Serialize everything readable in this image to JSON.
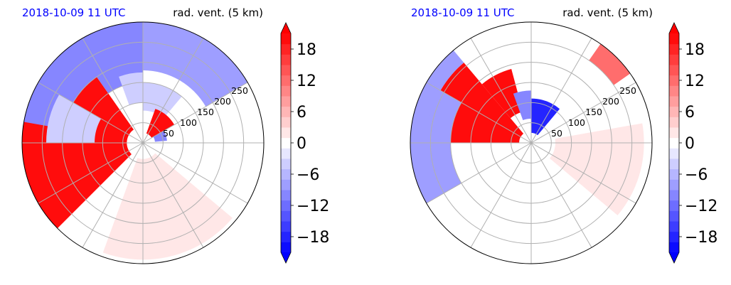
{
  "colors": {
    "title_date": "#0000ff",
    "negative_strong": "#0000ff",
    "positive_strong": "#ff0000",
    "grid": "#b0b0b0"
  },
  "chart_data": [
    {
      "type": "heatmap",
      "projection": "polar",
      "title_left": "2018-10-09 11 UTC",
      "title_right": "rad. vent. (5 km)",
      "range_rings": [
        50,
        100,
        150,
        200,
        250
      ],
      "range_labels": [
        "50",
        "100",
        "150",
        "200",
        "250"
      ],
      "max_range": 300,
      "azimuth_spokes_deg": [
        0,
        30,
        60,
        90,
        120,
        150,
        180,
        210,
        240,
        270,
        300,
        330
      ],
      "colorbar": {
        "vmin": -21,
        "vmax": 21,
        "levels": 21,
        "extend": "both",
        "cmap": "bwr",
        "ticks": [
          -18,
          -12,
          -6,
          0,
          6,
          12,
          18
        ],
        "tick_labels": [
          "−18",
          "−12",
          "−6",
          "0",
          "6",
          "12",
          "18"
        ]
      },
      "regions": [
        {
          "az": [
            225,
            325
          ],
          "r": [
            40,
            300
          ],
          "v": 19
        },
        {
          "az": [
            325,
            360
          ],
          "r": [
            150,
            300
          ],
          "v": -10
        },
        {
          "az": [
            280,
            345
          ],
          "r": [
            200,
            300
          ],
          "v": -10
        },
        {
          "az": [
            0,
            60
          ],
          "r": [
            180,
            300
          ],
          "v": -9
        },
        {
          "az": [
            340,
            360
          ],
          "r": [
            100,
            175
          ],
          "v": -5
        },
        {
          "az": [
            0,
            40
          ],
          "r": [
            80,
            150
          ],
          "v": -5
        },
        {
          "az": [
            20,
            60
          ],
          "r": [
            25,
            90
          ],
          "v": 19
        },
        {
          "az": [
            60,
            85
          ],
          "r": [
            30,
            60
          ],
          "v": -10
        },
        {
          "az": [
            270,
            300
          ],
          "r": [
            120,
            240
          ],
          "v": -4
        },
        {
          "az": [
            130,
            200
          ],
          "r": [
            40,
            290
          ],
          "v": 1.5
        }
      ]
    },
    {
      "type": "heatmap",
      "projection": "polar",
      "title_left": "2018-10-09 11 UTC",
      "title_right": "rad. vent. (5 km)",
      "range_rings": [
        50,
        100,
        150,
        200,
        250
      ],
      "range_labels": [
        "50",
        "100",
        "150",
        "200",
        "250"
      ],
      "max_range": 300,
      "azimuth_spokes_deg": [
        0,
        30,
        60,
        90,
        120,
        150,
        180,
        210,
        240,
        270,
        300,
        330
      ],
      "colorbar": {
        "vmin": -21,
        "vmax": 21,
        "levels": 21,
        "extend": "both",
        "cmap": "bwr",
        "ticks": [
          -18,
          -12,
          -6,
          0,
          6,
          12,
          18
        ],
        "tick_labels": [
          "−18",
          "−12",
          "−6",
          "0",
          "6",
          "12",
          "18"
        ]
      },
      "regions": [
        {
          "az": [
            270,
            320
          ],
          "r": [
            30,
            260
          ],
          "v": 19
        },
        {
          "az": [
            320,
            345
          ],
          "r": [
            80,
            190
          ],
          "v": 19
        },
        {
          "az": [
            0,
            40
          ],
          "r": [
            25,
            110
          ],
          "v": -19
        },
        {
          "az": [
            340,
            360
          ],
          "r": [
            60,
            130
          ],
          "v": -10
        },
        {
          "az": [
            240,
            300
          ],
          "r": [
            200,
            300
          ],
          "v": -8
        },
        {
          "az": [
            285,
            320
          ],
          "r": [
            260,
            300
          ],
          "v": -8
        },
        {
          "az": [
            35,
            55
          ],
          "r": [
            250,
            300
          ],
          "v": 12
        },
        {
          "az": [
            80,
            130
          ],
          "r": [
            60,
            280
          ],
          "v": 1.5
        }
      ]
    }
  ]
}
